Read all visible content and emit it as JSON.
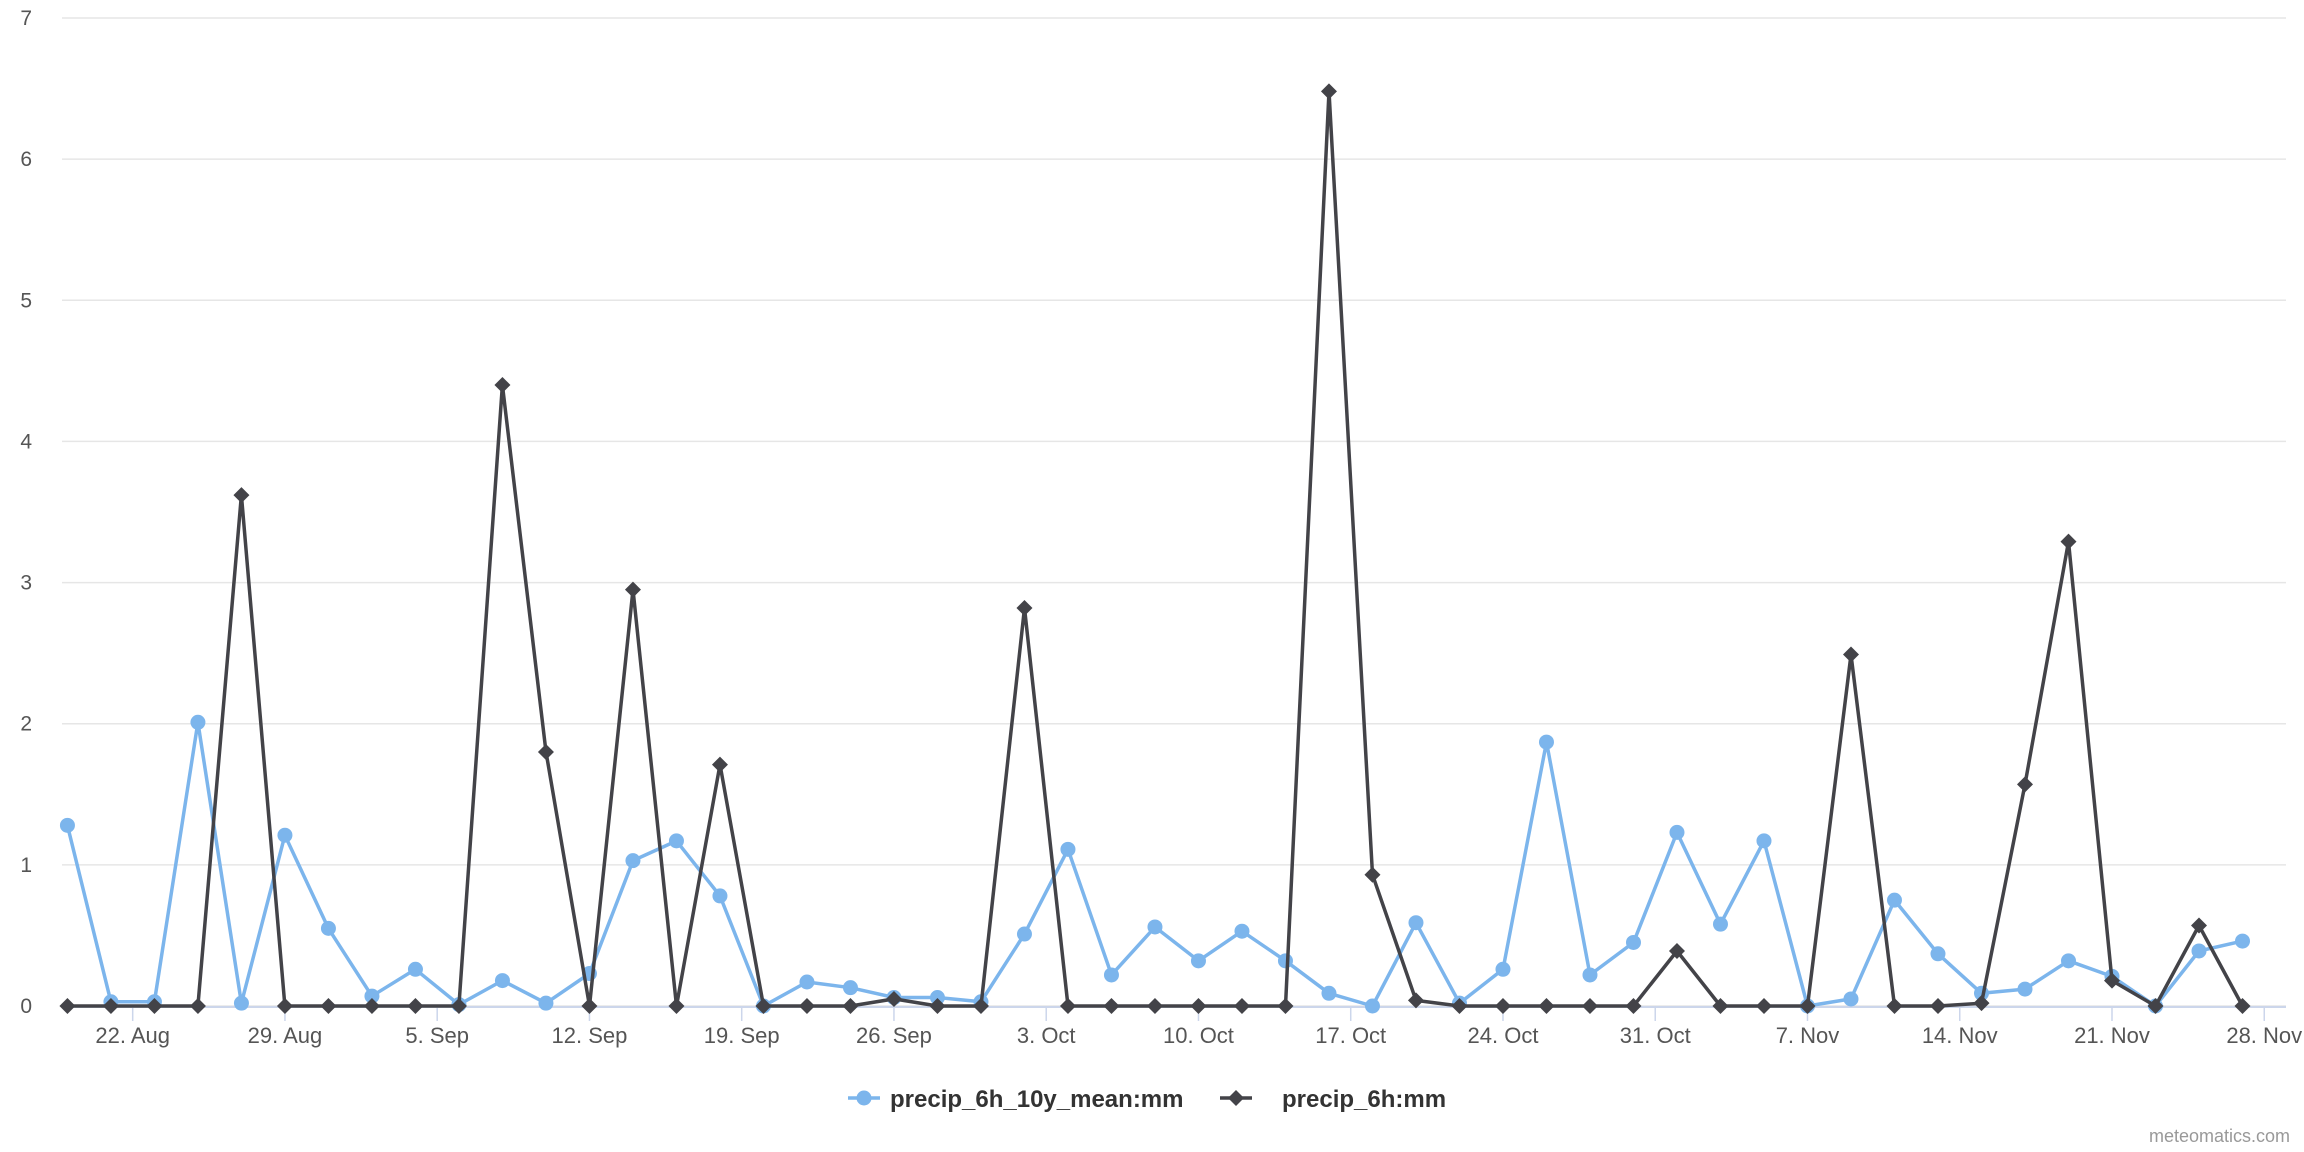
{
  "chart_data": {
    "type": "line",
    "title": "",
    "xlabel": "",
    "ylabel": "",
    "ylim": [
      0,
      7
    ],
    "y_ticks": [
      "0",
      "1",
      "2",
      "3",
      "4",
      "5",
      "6",
      "7"
    ],
    "x_ticks": [
      {
        "label": "22. Aug",
        "date": "2023-08-22"
      },
      {
        "label": "29. Aug",
        "date": "2023-08-29"
      },
      {
        "label": "5. Sep",
        "date": "2023-09-05"
      },
      {
        "label": "12. Sep",
        "date": "2023-09-12"
      },
      {
        "label": "19. Sep",
        "date": "2023-09-19"
      },
      {
        "label": "26. Sep",
        "date": "2023-09-26"
      },
      {
        "label": "3. Oct",
        "date": "2023-10-03"
      },
      {
        "label": "10. Oct",
        "date": "2023-10-10"
      },
      {
        "label": "17. Oct",
        "date": "2023-10-17"
      },
      {
        "label": "24. Oct",
        "date": "2023-10-24"
      },
      {
        "label": "31. Oct",
        "date": "2023-10-31"
      },
      {
        "label": "7. Nov",
        "date": "2023-11-07"
      },
      {
        "label": "14. Nov",
        "date": "2023-11-14"
      },
      {
        "label": "21. Nov",
        "date": "2023-11-21"
      },
      {
        "label": "28. Nov",
        "date": "2023-11-28"
      }
    ],
    "x": [
      "2023-08-19",
      "2023-08-21",
      "2023-08-23",
      "2023-08-25",
      "2023-08-27",
      "2023-08-29",
      "2023-08-31",
      "2023-09-02",
      "2023-09-04",
      "2023-09-06",
      "2023-09-08",
      "2023-09-10",
      "2023-09-12",
      "2023-09-14",
      "2023-09-16",
      "2023-09-18",
      "2023-09-20",
      "2023-09-22",
      "2023-09-24",
      "2023-09-26",
      "2023-09-28",
      "2023-09-30",
      "2023-10-02",
      "2023-10-04",
      "2023-10-06",
      "2023-10-08",
      "2023-10-10",
      "2023-10-12",
      "2023-10-14",
      "2023-10-16",
      "2023-10-18",
      "2023-10-20",
      "2023-10-22",
      "2023-10-24",
      "2023-10-26",
      "2023-10-28",
      "2023-10-30",
      "2023-11-01",
      "2023-11-03",
      "2023-11-05",
      "2023-11-07",
      "2023-11-09",
      "2023-11-11",
      "2023-11-13",
      "2023-11-15",
      "2023-11-17",
      "2023-11-19",
      "2023-11-21",
      "2023-11-23",
      "2023-11-25",
      "2023-11-27",
      "2023-11-29"
    ],
    "series": [
      {
        "name": "precip_6h_10y_mean:mm",
        "color": "#7cb5ec",
        "marker": "circle",
        "values": [
          1.28,
          0.03,
          0.03,
          2.01,
          0.02,
          1.21,
          0.55,
          0.07,
          0.26,
          0.01,
          0.18,
          0.02,
          0.23,
          1.03,
          1.17,
          0.78,
          0.0,
          0.17,
          0.13,
          0.06,
          0.06,
          0.03,
          0.51,
          1.11,
          0.22,
          0.56,
          0.32,
          0.53,
          0.32,
          0.09,
          0.0,
          0.59,
          0.02,
          0.26,
          1.87,
          0.22,
          0.45,
          1.23,
          0.58,
          1.17,
          0.0,
          0.05,
          0.75,
          0.37,
          0.09,
          0.12,
          0.32,
          0.21,
          0.0,
          0.39,
          0.46,
          null
        ]
      },
      {
        "name": "precip_6h:mm",
        "color": "#434348",
        "marker": "diamond",
        "values": [
          0.0,
          0.0,
          0.0,
          0.0,
          3.62,
          0.0,
          0.0,
          0.0,
          0.0,
          0.0,
          4.4,
          1.8,
          0.0,
          2.95,
          0.0,
          1.71,
          0.0,
          0.0,
          0.0,
          0.05,
          0.0,
          0.0,
          2.82,
          0.0,
          0.0,
          0.0,
          0.0,
          0.0,
          0.0,
          6.48,
          0.93,
          0.04,
          0.0,
          0.0,
          0.0,
          0.0,
          0.0,
          0.39,
          0.0,
          0.0,
          0.0,
          2.49,
          0.0,
          0.0,
          0.02,
          1.57,
          3.29,
          0.18,
          0.0,
          0.57,
          0.0,
          null
        ]
      }
    ],
    "legend_position": "bottom-center",
    "grid": "horizontal",
    "credits": "meteomatics.com"
  }
}
